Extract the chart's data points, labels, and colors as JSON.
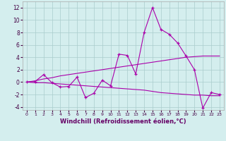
{
  "x": [
    0,
    1,
    2,
    3,
    4,
    5,
    6,
    7,
    8,
    9,
    10,
    11,
    12,
    13,
    14,
    15,
    16,
    17,
    18,
    19,
    20,
    21,
    22,
    23
  ],
  "y_main": [
    0.0,
    0.1,
    1.2,
    -0.1,
    -0.8,
    -0.7,
    0.8,
    -2.5,
    -1.8,
    0.3,
    -0.6,
    4.5,
    4.3,
    1.3,
    8.0,
    12.0,
    8.5,
    7.7,
    6.3,
    4.2,
    2.0,
    -4.2,
    -1.7,
    -2.0
  ],
  "y_upper": [
    0.0,
    0.2,
    0.5,
    0.7,
    1.0,
    1.2,
    1.4,
    1.6,
    1.8,
    2.0,
    2.2,
    2.4,
    2.6,
    2.8,
    3.0,
    3.2,
    3.4,
    3.6,
    3.8,
    4.0,
    4.1,
    4.2,
    4.2,
    4.2
  ],
  "y_lower": [
    0.0,
    -0.1,
    -0.1,
    -0.2,
    -0.3,
    -0.4,
    -0.5,
    -0.6,
    -0.7,
    -0.8,
    -0.9,
    -1.0,
    -1.1,
    -1.2,
    -1.3,
    -1.5,
    -1.7,
    -1.8,
    -1.9,
    -2.0,
    -2.1,
    -2.1,
    -2.2,
    -2.2
  ],
  "color": "#aa00aa",
  "bg_color": "#d4eeee",
  "grid_color": "#aacccc",
  "xlabel": "Windchill (Refroidissement éolien,°C)",
  "xlim": [
    -0.5,
    23.5
  ],
  "ylim": [
    -4.5,
    13.0
  ],
  "yticks": [
    -4,
    -2,
    0,
    2,
    4,
    6,
    8,
    10,
    12
  ],
  "xticks": [
    0,
    1,
    2,
    3,
    4,
    5,
    6,
    7,
    8,
    9,
    10,
    11,
    12,
    13,
    14,
    15,
    16,
    17,
    18,
    19,
    20,
    21,
    22,
    23
  ],
  "xlabel_color": "#660066",
  "xlabel_fontsize": 6.0,
  "tick_fontsize_x": 4.5,
  "tick_fontsize_y": 5.5
}
